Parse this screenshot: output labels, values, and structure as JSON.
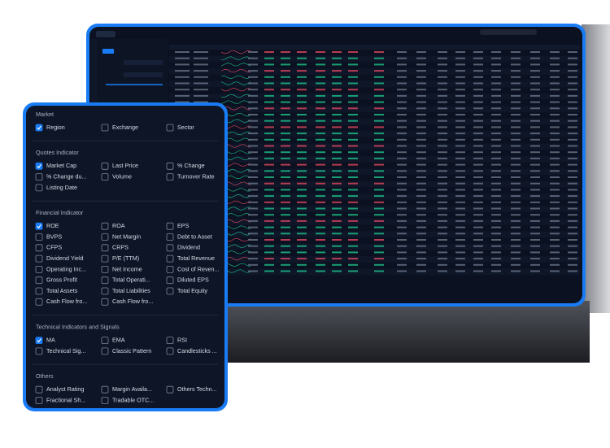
{
  "sections": [
    {
      "title": "Market",
      "items": [
        {
          "label": "Region",
          "checked": true
        },
        {
          "label": "Exchange",
          "checked": false
        },
        {
          "label": "Sector",
          "checked": false
        }
      ]
    },
    {
      "title": "Quotes Indicator",
      "items": [
        {
          "label": "Market Cap",
          "checked": true
        },
        {
          "label": "Last Price",
          "checked": false
        },
        {
          "label": "% Change",
          "checked": false
        },
        {
          "label": "% Change du...",
          "checked": false
        },
        {
          "label": "Volume",
          "checked": false
        },
        {
          "label": "Turnover Rate",
          "checked": false
        },
        {
          "label": "Listing Date",
          "checked": false
        }
      ]
    },
    {
      "title": "Financial Indicator",
      "items": [
        {
          "label": "ROE",
          "checked": true
        },
        {
          "label": "ROA",
          "checked": false
        },
        {
          "label": "EPS",
          "checked": false
        },
        {
          "label": "BVPS",
          "checked": false
        },
        {
          "label": "Net Margin",
          "checked": false
        },
        {
          "label": "Debt to Asset",
          "checked": false
        },
        {
          "label": "CFPS",
          "checked": false
        },
        {
          "label": "CRPS",
          "checked": false
        },
        {
          "label": "Dividend",
          "checked": false
        },
        {
          "label": "Dividend Yield",
          "checked": false
        },
        {
          "label": "P/E (TTM)",
          "checked": false
        },
        {
          "label": "Total Revenue",
          "checked": false
        },
        {
          "label": "Operating Inc...",
          "checked": false
        },
        {
          "label": "Net Income",
          "checked": false
        },
        {
          "label": "Cost of Reven...",
          "checked": false
        },
        {
          "label": "Gross Profit",
          "checked": false
        },
        {
          "label": "Total Operati...",
          "checked": false
        },
        {
          "label": "Diluted EPS",
          "checked": false
        },
        {
          "label": "Total Assets",
          "checked": false
        },
        {
          "label": "Total Liabilities",
          "checked": false
        },
        {
          "label": "Total Equity",
          "checked": false
        },
        {
          "label": "Cash Flow fro...",
          "checked": false
        },
        {
          "label": "Cash Flow fro...",
          "checked": false
        }
      ]
    },
    {
      "title": "Technical Indicators and Signals",
      "items": [
        {
          "label": "MA",
          "checked": true
        },
        {
          "label": "EMA",
          "checked": false
        },
        {
          "label": "RSI",
          "checked": false
        },
        {
          "label": "Technical Sig...",
          "checked": false
        },
        {
          "label": "Classic Pattern",
          "checked": false
        },
        {
          "label": "Candlesticks ...",
          "checked": false
        }
      ]
    },
    {
      "title": "Others",
      "items": [
        {
          "label": "Analyst Rating",
          "checked": false
        },
        {
          "label": "Margin Availa...",
          "checked": false
        },
        {
          "label": "Others Techn...",
          "checked": false
        },
        {
          "label": "Fractional Sh...",
          "checked": false
        },
        {
          "label": "Tradable OTC...",
          "checked": false
        }
      ]
    }
  ]
}
